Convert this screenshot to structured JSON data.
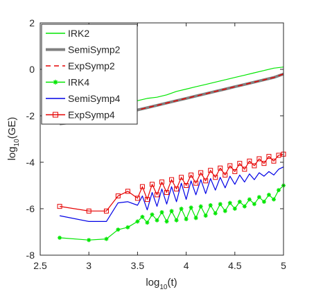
{
  "chart_data": {
    "type": "line",
    "xlabel_main": "log",
    "xlabel_sub": "10",
    "xlabel_arg": "(t)",
    "ylabel_main": "log",
    "ylabel_sub": "10",
    "ylabel_arg": "(GE)",
    "xlim": [
      2.5,
      5
    ],
    "ylim": [
      -8,
      2
    ],
    "xticks": [
      2.5,
      3,
      3.5,
      4,
      4.5,
      5
    ],
    "xtick_labels": [
      "2.5",
      "3",
      "3.5",
      "4",
      "4.5",
      "5"
    ],
    "yticks": [
      -8,
      -6,
      -4,
      -2,
      0,
      2
    ],
    "ytick_labels": [
      "-8",
      "-6",
      "-4",
      "-2",
      "0",
      "2"
    ],
    "grid": false,
    "legend_position": "top-left",
    "series": [
      {
        "name": "IRK2",
        "color": "#00e600",
        "style": "solid",
        "marker": "none",
        "x": [
          2.7,
          3.0,
          3.18,
          3.3,
          3.4,
          3.5,
          3.6,
          3.7,
          3.8,
          3.9,
          4.0,
          4.1,
          4.2,
          4.3,
          4.4,
          4.5,
          4.6,
          4.7,
          4.8,
          4.9,
          5.0
        ],
        "y": [
          -2.1,
          -1.95,
          -1.9,
          -1.6,
          -1.4,
          -1.35,
          -1.25,
          -1.2,
          -1.1,
          -0.95,
          -0.85,
          -0.75,
          -0.65,
          -0.55,
          -0.45,
          -0.35,
          -0.25,
          -0.15,
          -0.05,
          0.05,
          0.1
        ]
      },
      {
        "name": "SemiSymp2",
        "color": "#808080",
        "style": "solid",
        "marker": "none",
        "x": [
          2.7,
          3.0,
          3.18,
          3.3,
          3.4,
          3.5,
          3.6,
          3.7,
          3.8,
          3.9,
          4.0,
          4.1,
          4.2,
          4.3,
          4.4,
          4.5,
          4.6,
          4.7,
          4.8,
          4.9,
          5.0
        ],
        "y": [
          -2.35,
          -2.2,
          -2.15,
          -1.95,
          -1.8,
          -1.75,
          -1.65,
          -1.55,
          -1.45,
          -1.35,
          -1.25,
          -1.15,
          -1.05,
          -0.95,
          -0.85,
          -0.75,
          -0.65,
          -0.55,
          -0.45,
          -0.35,
          -0.2
        ]
      },
      {
        "name": "ExpSymp2",
        "color": "#e60000",
        "style": "dashed",
        "marker": "none",
        "x": [
          2.7,
          3.0,
          3.18,
          3.3,
          3.4,
          3.5,
          3.6,
          3.7,
          3.8,
          3.9,
          4.0,
          4.1,
          4.2,
          4.3,
          4.4,
          4.5,
          4.6,
          4.7,
          4.8,
          4.9,
          5.0
        ],
        "y": [
          -2.35,
          -2.2,
          -2.15,
          -1.95,
          -1.8,
          -1.75,
          -1.65,
          -1.55,
          -1.45,
          -1.35,
          -1.25,
          -1.15,
          -1.05,
          -0.95,
          -0.85,
          -0.75,
          -0.65,
          -0.55,
          -0.45,
          -0.35,
          -0.2
        ]
      },
      {
        "name": "IRK4",
        "color": "#00e600",
        "style": "solid",
        "marker": "asterisk",
        "x": [
          2.7,
          3.0,
          3.18,
          3.3,
          3.4,
          3.5,
          3.55,
          3.6,
          3.65,
          3.7,
          3.75,
          3.8,
          3.85,
          3.9,
          3.95,
          4.0,
          4.05,
          4.1,
          4.15,
          4.2,
          4.25,
          4.3,
          4.35,
          4.4,
          4.45,
          4.5,
          4.55,
          4.6,
          4.65,
          4.7,
          4.75,
          4.8,
          4.85,
          4.9,
          4.95,
          5.0
        ],
        "y": [
          -7.25,
          -7.35,
          -7.3,
          -6.9,
          -6.8,
          -6.55,
          -6.35,
          -6.6,
          -6.25,
          -6.5,
          -6.15,
          -6.55,
          -6.1,
          -6.5,
          -6.0,
          -6.45,
          -5.95,
          -6.4,
          -5.9,
          -6.3,
          -5.85,
          -6.2,
          -5.8,
          -6.1,
          -5.75,
          -6.0,
          -5.7,
          -5.9,
          -5.6,
          -5.8,
          -5.5,
          -5.7,
          -5.4,
          -5.6,
          -5.2,
          -5.0
        ]
      },
      {
        "name": "SemiSymp4",
        "color": "#0000e6",
        "style": "solid",
        "marker": "none",
        "x": [
          2.7,
          3.0,
          3.18,
          3.3,
          3.4,
          3.5,
          3.55,
          3.6,
          3.65,
          3.7,
          3.75,
          3.8,
          3.85,
          3.9,
          3.95,
          4.0,
          4.05,
          4.1,
          4.15,
          4.2,
          4.25,
          4.3,
          4.35,
          4.4,
          4.45,
          4.5,
          4.55,
          4.6,
          4.65,
          4.7,
          4.75,
          4.8,
          4.85,
          4.9,
          4.95,
          5.0
        ],
        "y": [
          -6.3,
          -6.55,
          -6.55,
          -5.75,
          -5.7,
          -5.85,
          -5.45,
          -6.05,
          -5.3,
          -5.9,
          -5.15,
          -5.8,
          -5.05,
          -5.7,
          -4.9,
          -5.6,
          -4.8,
          -5.4,
          -4.75,
          -5.35,
          -4.7,
          -5.2,
          -4.65,
          -5.1,
          -4.6,
          -4.95,
          -4.55,
          -4.85,
          -4.5,
          -4.75,
          -4.45,
          -4.6,
          -4.4,
          -4.55,
          -4.3,
          -4.2
        ]
      },
      {
        "name": "ExpSymp4",
        "color": "#e60000",
        "style": "solid",
        "marker": "square",
        "x": [
          2.7,
          3.0,
          3.18,
          3.3,
          3.4,
          3.5,
          3.55,
          3.6,
          3.65,
          3.7,
          3.75,
          3.8,
          3.85,
          3.9,
          3.95,
          4.0,
          4.05,
          4.1,
          4.15,
          4.2,
          4.25,
          4.3,
          4.35,
          4.4,
          4.45,
          4.5,
          4.55,
          4.6,
          4.65,
          4.7,
          4.75,
          4.8,
          4.85,
          4.9,
          4.95,
          5.0
        ],
        "y": [
          -5.9,
          -6.1,
          -6.1,
          -5.45,
          -5.25,
          -5.55,
          -5.05,
          -5.6,
          -4.95,
          -5.4,
          -4.85,
          -5.3,
          -4.75,
          -5.15,
          -4.65,
          -5.0,
          -4.55,
          -4.9,
          -4.45,
          -4.8,
          -4.35,
          -4.65,
          -4.25,
          -4.55,
          -4.15,
          -4.4,
          -4.05,
          -4.3,
          -3.95,
          -4.15,
          -3.85,
          -4.05,
          -3.75,
          -3.95,
          -3.7,
          -3.65
        ]
      }
    ]
  }
}
